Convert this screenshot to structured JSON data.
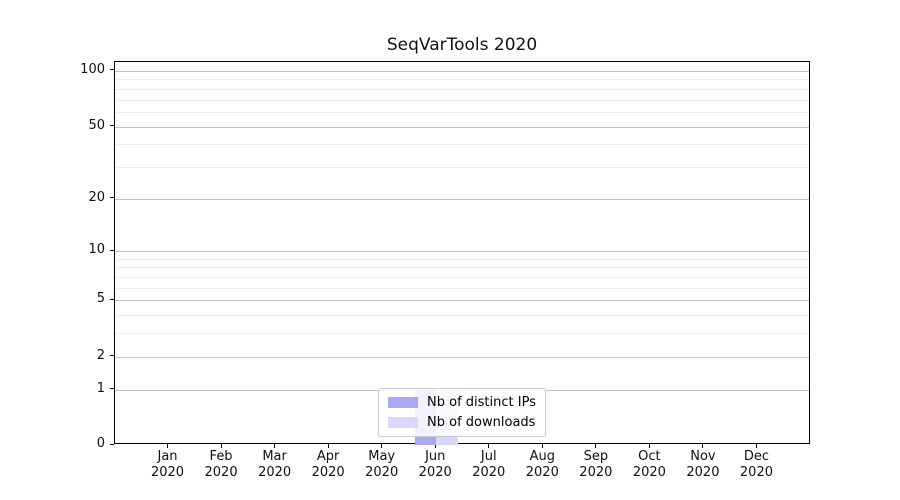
{
  "chart": {
    "title": "SeqVarTools 2020"
  },
  "chart_data": {
    "type": "bar",
    "title": "SeqVarTools 2020",
    "categories": [
      "Jan",
      "Feb",
      "Mar",
      "Apr",
      "May",
      "Jun",
      "Jul",
      "Aug",
      "Sep",
      "Oct",
      "Nov",
      "Dec"
    ],
    "category_year": "2020",
    "series": [
      {
        "name": "Nb of distinct IPs",
        "color": "#a9a9f0",
        "values": [
          0,
          0,
          0,
          0,
          0,
          1,
          0,
          0,
          0,
          0,
          0,
          0
        ]
      },
      {
        "name": "Nb of downloads",
        "color": "#d9d9f7",
        "values": [
          0,
          0,
          0,
          0,
          0,
          1,
          0,
          0,
          0,
          0,
          0,
          0
        ]
      }
    ],
    "yscale": "log1p",
    "yticks": [
      0,
      1,
      2,
      5,
      10,
      20,
      50,
      100
    ],
    "yticks_minor": [
      3,
      4,
      6,
      7,
      8,
      9,
      30,
      40,
      60,
      70,
      80,
      90
    ],
    "ylim": [
      0,
      113
    ],
    "grid": true,
    "legend_position": "lower center",
    "bar_group_width": 0.8
  }
}
